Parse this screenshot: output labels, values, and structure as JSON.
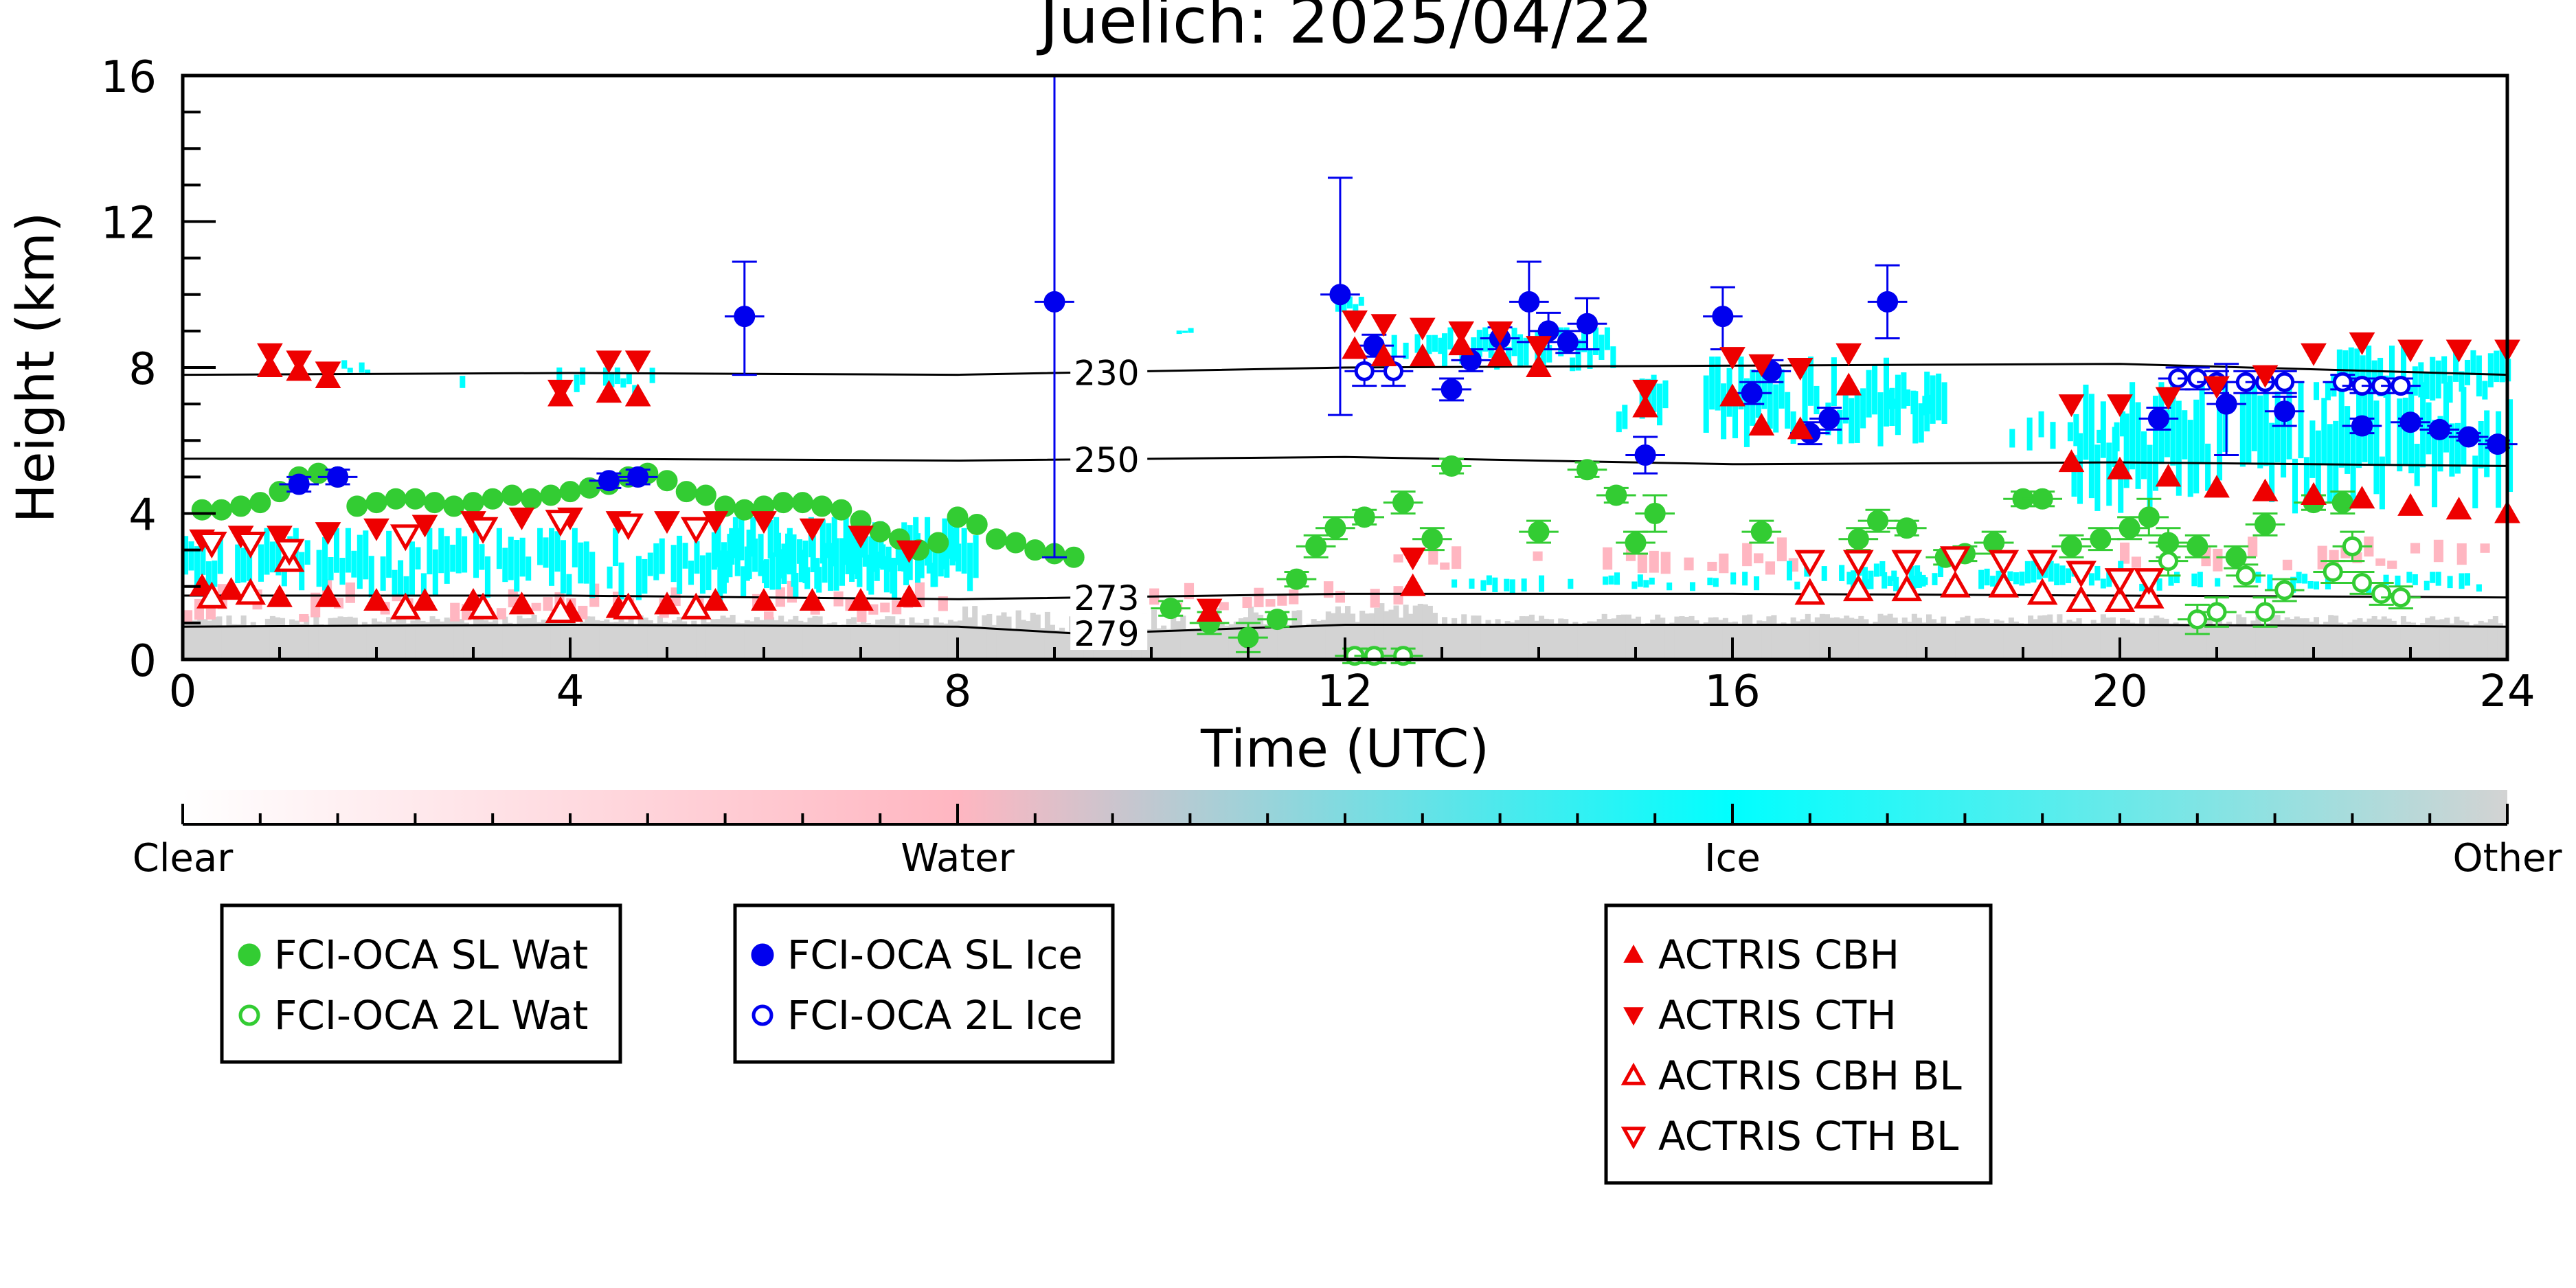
{
  "chart_data": {
    "type": "scatter",
    "title": "Juelich: 2025/04/22",
    "xlabel": "Time (UTC)",
    "ylabel": "Height (km)",
    "xlim": [
      0,
      24
    ],
    "ylim": [
      0,
      16
    ],
    "x_ticks": [
      0,
      4,
      8,
      12,
      16,
      20,
      24
    ],
    "y_ticks": [
      0,
      4,
      8,
      12,
      16
    ],
    "isotherms": [
      {
        "label": "230",
        "points": [
          [
            0,
            7.8
          ],
          [
            4,
            7.85
          ],
          [
            8,
            7.8
          ],
          [
            12,
            8.0
          ],
          [
            16,
            8.05
          ],
          [
            20,
            8.1
          ],
          [
            24,
            7.8
          ]
        ]
      },
      {
        "label": "250",
        "points": [
          [
            0,
            5.5
          ],
          [
            4,
            5.5
          ],
          [
            8,
            5.45
          ],
          [
            12,
            5.55
          ],
          [
            16,
            5.35
          ],
          [
            20,
            5.4
          ],
          [
            24,
            5.3
          ]
        ]
      },
      {
        "label": "273",
        "points": [
          [
            0,
            1.75
          ],
          [
            4,
            1.75
          ],
          [
            8,
            1.65
          ],
          [
            12,
            1.8
          ],
          [
            16,
            1.8
          ],
          [
            20,
            1.75
          ],
          [
            24,
            1.7
          ]
        ]
      },
      {
        "label": "279",
        "points": [
          [
            0,
            0.9
          ],
          [
            4,
            0.95
          ],
          [
            8,
            0.9
          ],
          [
            9.3,
            0.7
          ],
          [
            12,
            0.95
          ],
          [
            16,
            0.95
          ],
          [
            20,
            0.95
          ],
          [
            24,
            0.9
          ]
        ]
      }
    ],
    "colorbar": {
      "labels": [
        "Clear",
        "Water",
        "Ice",
        "Other"
      ],
      "colors": [
        "#ffffff",
        "#ffb6c1",
        "#00ffff",
        "#d3d3d3"
      ]
    },
    "series": [
      {
        "name": "FCI-OCA SL Wat",
        "marker": "circle",
        "filled": true,
        "color": "#33cc33",
        "x": [
          0.2,
          0.4,
          0.6,
          0.8,
          1.0,
          1.2,
          1.4,
          1.6,
          1.8,
          2.0,
          2.2,
          2.4,
          2.6,
          2.8,
          3.0,
          3.2,
          3.4,
          3.6,
          3.8,
          4.0,
          4.2,
          4.4,
          4.6,
          4.8,
          5.0,
          5.2,
          5.4,
          5.6,
          5.8,
          6.0,
          6.2,
          6.4,
          6.6,
          6.8,
          7.0,
          7.2,
          7.4,
          7.6,
          7.8,
          8.0,
          8.2,
          8.4,
          8.6,
          8.8,
          9.0,
          9.2,
          10.2,
          10.6,
          11.0,
          11.3,
          11.5,
          11.7,
          11.9,
          12.2,
          12.6,
          12.9,
          13.1,
          14.0,
          14.5,
          14.8,
          15.0,
          15.2,
          16.3,
          17.3,
          17.5,
          17.8,
          18.2,
          18.4,
          18.7,
          19.0,
          19.2,
          19.5,
          19.8,
          20.1,
          20.3,
          20.5,
          20.8,
          21.2,
          21.5,
          22.0,
          22.3
        ],
        "y": [
          4.1,
          4.1,
          4.2,
          4.3,
          4.6,
          5.0,
          5.1,
          5.0,
          4.2,
          4.3,
          4.4,
          4.4,
          4.3,
          4.2,
          4.3,
          4.4,
          4.5,
          4.4,
          4.5,
          4.6,
          4.7,
          4.8,
          5.0,
          5.1,
          4.9,
          4.6,
          4.5,
          4.2,
          4.1,
          4.2,
          4.3,
          4.3,
          4.2,
          4.1,
          3.8,
          3.5,
          3.3,
          3.0,
          3.2,
          3.9,
          3.7,
          3.3,
          3.2,
          3.0,
          2.9,
          2.8,
          1.4,
          1.0,
          0.6,
          1.1,
          2.2,
          3.1,
          3.6,
          3.9,
          4.3,
          3.3,
          5.3,
          3.5,
          5.2,
          4.5,
          3.2,
          4.0,
          3.5,
          3.3,
          3.8,
          3.6,
          2.8,
          2.9,
          3.2,
          4.4,
          4.4,
          3.1,
          3.3,
          3.6,
          3.9,
          3.2,
          3.1,
          2.8,
          3.7,
          4.3,
          4.3
        ],
        "error": [
          0,
          0,
          0,
          0,
          0,
          0,
          0,
          0,
          0,
          0,
          0,
          0,
          0,
          0,
          0,
          0,
          0,
          0,
          0,
          0,
          0,
          0,
          0,
          0,
          0,
          0,
          0,
          0,
          0,
          0,
          0,
          0,
          0,
          0,
          0,
          0,
          0,
          0,
          0,
          0,
          0,
          0,
          0,
          0,
          0,
          0,
          0.2,
          0.3,
          0.4,
          0.2,
          0.2,
          0.3,
          0.3,
          0.2,
          0.3,
          0.3,
          0.2,
          0.3,
          0.2,
          0.2,
          0.3,
          0.5,
          0.3,
          0.3,
          0.3,
          0.2,
          0.2,
          0.2,
          0.3,
          0.2,
          0.2,
          0.3,
          0.3,
          0.3,
          0.5,
          0.4,
          0.3,
          0.3,
          0.3,
          0.2,
          0.3
        ]
      },
      {
        "name": "FCI-OCA 2L Wat",
        "marker": "circle",
        "filled": false,
        "color": "#33cc33",
        "x": [
          12.1,
          12.3,
          12.6,
          20.5,
          20.8,
          21.0,
          21.3,
          21.5,
          21.7,
          22.2,
          22.4,
          22.5,
          22.7,
          22.9
        ],
        "y": [
          0.1,
          0.1,
          0.1,
          2.7,
          1.1,
          1.3,
          2.3,
          1.3,
          1.9,
          2.4,
          3.1,
          2.1,
          1.8,
          1.7
        ],
        "error": [
          0.2,
          0.2,
          0.2,
          0.4,
          0.4,
          0.4,
          0.3,
          0.4,
          0.3,
          0.3,
          0.4,
          0.3,
          0.3,
          0.3
        ]
      },
      {
        "name": "FCI-OCA SL Ice",
        "marker": "circle",
        "filled": true,
        "color": "#0000ee",
        "x": [
          1.2,
          1.6,
          4.4,
          4.7,
          5.8,
          9.0,
          11.95,
          12.3,
          13.1,
          13.3,
          13.6,
          13.9,
          14.1,
          14.3,
          14.5,
          15.1,
          15.9,
          16.2,
          16.4,
          16.8,
          17.0,
          17.6,
          20.4,
          21.1,
          21.7,
          22.5,
          23.0,
          23.3,
          23.6,
          23.9
        ],
        "y": [
          4.8,
          5.0,
          4.9,
          5.0,
          9.4,
          9.8,
          10.0,
          8.6,
          7.4,
          8.2,
          8.8,
          9.8,
          9.0,
          8.7,
          9.2,
          5.6,
          9.4,
          7.3,
          7.9,
          6.2,
          6.6,
          9.8,
          6.6,
          7.0,
          6.8,
          6.4,
          6.5,
          6.3,
          6.1,
          5.9
        ],
        "error_low": [
          0.2,
          0.2,
          0.2,
          0.2,
          1.6,
          7.0,
          3.3,
          0.3,
          0.3,
          0.3,
          0.3,
          1.1,
          0.5,
          0.3,
          0.7,
          0.5,
          0.9,
          0.3,
          0.3,
          0.3,
          0.3,
          1.0,
          0.3,
          1.4,
          0.4,
          0.2,
          0.1,
          0.1,
          0.1,
          0.1
        ],
        "error_high": [
          0.2,
          0.2,
          0.2,
          0.2,
          1.5,
          6.2,
          3.2,
          0.3,
          0.3,
          0.3,
          0.3,
          1.1,
          0.5,
          0.3,
          0.7,
          0.5,
          0.8,
          0.3,
          0.3,
          0.3,
          0.3,
          1.0,
          0.3,
          1.1,
          0.4,
          0.2,
          0.1,
          0.1,
          0.1,
          0.1
        ]
      },
      {
        "name": "FCI-OCA 2L Ice",
        "marker": "circle",
        "filled": false,
        "color": "#0000ee",
        "x": [
          12.2,
          12.5,
          20.6,
          20.8,
          21.0,
          21.3,
          21.5,
          21.7,
          22.3,
          22.5,
          22.7,
          22.9
        ],
        "y": [
          7.9,
          7.9,
          7.7,
          7.7,
          7.6,
          7.6,
          7.6,
          7.6,
          7.6,
          7.5,
          7.5,
          7.5
        ],
        "error": [
          0.4,
          0.4,
          0.3,
          0.3,
          0.3,
          0.3,
          0.3,
          0.3,
          0.2,
          0.2,
          0.2,
          0.2
        ]
      },
      {
        "name": "ACTRIS CBH",
        "marker": "triangle-up",
        "filled": true,
        "color": "#ee0000",
        "x": [
          0.2,
          0.5,
          1.0,
          1.5,
          2.0,
          2.5,
          3.0,
          3.5,
          4.0,
          4.5,
          5.0,
          5.5,
          6.0,
          6.5,
          7.0,
          7.5,
          0.9,
          1.2,
          1.5,
          3.9,
          4.4,
          4.7,
          12.1,
          12.4,
          12.8,
          13.2,
          13.6,
          14.0,
          15.1,
          16.0,
          16.3,
          16.7,
          17.2,
          19.5,
          20.0,
          20.5,
          21.0,
          21.5,
          22.0,
          22.5,
          23.0,
          23.5,
          24.0,
          10.6,
          12.7
        ],
        "y": [
          2.0,
          1.9,
          1.7,
          1.7,
          1.6,
          1.6,
          1.6,
          1.5,
          1.3,
          1.4,
          1.5,
          1.6,
          1.6,
          1.6,
          1.6,
          1.7,
          8.0,
          7.9,
          7.7,
          7.2,
          7.3,
          7.2,
          8.5,
          8.3,
          8.3,
          8.6,
          8.3,
          8.0,
          6.9,
          7.2,
          6.4,
          6.3,
          7.5,
          5.4,
          5.2,
          5.0,
          4.7,
          4.6,
          4.5,
          4.4,
          4.2,
          4.1,
          4.0,
          1.3,
          2.0
        ],
        "error": []
      },
      {
        "name": "ACTRIS CTH",
        "marker": "triangle-down",
        "filled": true,
        "color": "#ee0000",
        "x": [
          0.2,
          0.6,
          1.0,
          1.5,
          2.0,
          2.5,
          3.0,
          3.5,
          4.0,
          4.5,
          5.0,
          5.5,
          6.0,
          6.5,
          7.0,
          7.5,
          0.9,
          1.2,
          1.5,
          3.9,
          4.4,
          4.7,
          12.1,
          12.4,
          12.8,
          13.2,
          13.6,
          14.0,
          15.1,
          16.0,
          16.3,
          16.7,
          17.2,
          19.5,
          20.0,
          20.5,
          21.0,
          21.5,
          22.0,
          22.5,
          23.0,
          23.5,
          24.0,
          10.6,
          12.7
        ],
        "y": [
          3.3,
          3.4,
          3.4,
          3.5,
          3.6,
          3.7,
          3.8,
          3.9,
          3.9,
          3.8,
          3.8,
          3.8,
          3.8,
          3.6,
          3.4,
          3.0,
          8.4,
          8.2,
          7.9,
          7.4,
          8.2,
          8.2,
          9.3,
          9.2,
          9.1,
          9.0,
          9.0,
          8.6,
          7.4,
          8.3,
          8.1,
          8.0,
          8.4,
          7.0,
          7.0,
          7.2,
          7.5,
          7.8,
          8.4,
          8.7,
          8.5,
          8.5,
          8.5,
          1.4,
          2.8
        ],
        "error": []
      },
      {
        "name": "ACTRIS CBH BL",
        "marker": "triangle-up",
        "filled": false,
        "color": "#ee0000",
        "x": [
          0.3,
          0.7,
          1.1,
          2.3,
          3.1,
          3.9,
          4.6,
          5.3,
          16.8,
          17.3,
          17.8,
          18.3,
          18.8,
          19.2,
          19.6,
          20.0,
          20.3
        ],
        "y": [
          1.7,
          1.8,
          2.7,
          1.4,
          1.4,
          1.3,
          1.4,
          1.4,
          1.8,
          1.9,
          1.9,
          2.0,
          2.0,
          1.8,
          1.6,
          1.6,
          1.7
        ],
        "error": []
      },
      {
        "name": "ACTRIS CTH BL",
        "marker": "triangle-down",
        "filled": false,
        "color": "#ee0000",
        "x": [
          0.3,
          0.7,
          1.1,
          2.3,
          3.1,
          3.9,
          4.6,
          5.3,
          16.8,
          17.3,
          17.8,
          18.3,
          18.8,
          19.2,
          19.6,
          20.0,
          20.3
        ],
        "y": [
          3.2,
          3.2,
          3.0,
          3.4,
          3.6,
          3.8,
          3.7,
          3.6,
          2.7,
          2.7,
          2.7,
          2.8,
          2.7,
          2.7,
          2.4,
          2.2,
          2.2
        ],
        "error": []
      }
    ],
    "legend_groups": [
      [
        "FCI-OCA SL Wat",
        "FCI-OCA 2L Wat"
      ],
      [
        "FCI-OCA SL Ice",
        "FCI-OCA 2L Ice"
      ],
      [
        "ACTRIS CBH",
        "ACTRIS CTH",
        "ACTRIS CBH BL",
        "ACTRIS CTH BL"
      ]
    ],
    "legend_placement": "below"
  }
}
